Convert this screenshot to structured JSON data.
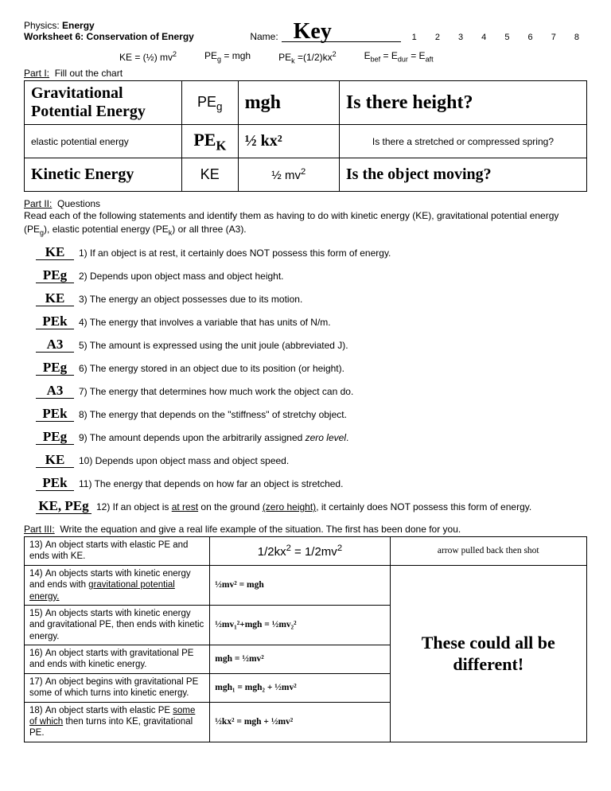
{
  "header": {
    "line1": "Physics: Energy",
    "line2": "Worksheet 6: Conservation of Energy",
    "name_label": "Name:",
    "name_value": "Key",
    "periods": "1   2   3   4   5   6   7   8"
  },
  "formulas": {
    "ke": "KE = (½) mv²",
    "peg": "PEg = mgh",
    "pek": "PEk =(1/2)kx²",
    "econs": "Ebef = Edur = Eaft"
  },
  "part1": {
    "label": "Part I:",
    "instr": "Fill out the chart",
    "rows": [
      {
        "c1": "Gravitational Potential Energy",
        "c1_hand": true,
        "c2": "PEg",
        "c2_hand": false,
        "c3": "mgh",
        "c3_hand": true,
        "c4": "Is there height?",
        "c4_hand": true
      },
      {
        "c1": "elastic potential energy",
        "c1_hand": false,
        "c2": "PEK",
        "c2_hand": true,
        "c3": "½ kx²",
        "c3_hand": true,
        "c4": "Is there a stretched or compressed spring?",
        "c4_hand": false
      },
      {
        "c1": "Kinetic Energy",
        "c1_hand": true,
        "c2": "KE",
        "c2_hand": false,
        "c3": "½ mv²",
        "c3_hand": false,
        "c4": "Is the object moving?",
        "c4_hand": true
      }
    ]
  },
  "part2": {
    "label": "Part II:",
    "label2": "Questions",
    "instr": "Read each of the following statements and identify them as having to do with kinetic energy (KE), gravitational potential energy (PEg), elastic potential energy (PEk) or all three (A3).",
    "items": [
      {
        "ans": "KE",
        "num": "1)",
        "text": "If an object is at rest, it certainly does NOT possess this form of energy."
      },
      {
        "ans": "PEg",
        "num": "2)",
        "text": "Depends upon object mass and object height."
      },
      {
        "ans": "KE",
        "num": "3)",
        "text": "The energy an object possesses due to its motion."
      },
      {
        "ans": "PEk",
        "num": "4)",
        "text": "The energy that involves a variable that has units of N/m."
      },
      {
        "ans": "A3",
        "num": "5)",
        "text": "The amount is expressed using the unit joule (abbreviated J)."
      },
      {
        "ans": "PEg",
        "num": "6)",
        "text": "The energy stored in an object due to its position (or height)."
      },
      {
        "ans": "A3",
        "num": "7)",
        "text": "The energy that determines how much work the object can do."
      },
      {
        "ans": "PEk",
        "num": "8)",
        "text": "The energy that depends on the \"stiffness\" of stretchy object."
      },
      {
        "ans": "PEg",
        "num": "9)",
        "text": "The amount depends upon the arbitrarily assigned zero level."
      },
      {
        "ans": "KE",
        "num": "10)",
        "text": "Depends upon object mass and object speed."
      },
      {
        "ans": "PEk",
        "num": "11)",
        "text": "The energy that depends on how far an object is stretched."
      },
      {
        "ans": "KE, PEg",
        "num": "12)",
        "text": "If an object is at rest on the ground (zero height), it certainly does NOT possess this form of energy.",
        "wide": true
      }
    ]
  },
  "part3": {
    "label": "Part III:",
    "instr": "Write the equation and give a real life example of the situation. The first has been done for you.",
    "rows": [
      {
        "n": "13)",
        "desc": "An object starts with elastic PE and ends with KE.",
        "eq": "1/2kx² = 1/2mv²",
        "ex": "arrow pulled back then shot"
      },
      {
        "n": "14)",
        "desc": "An objects starts with kinetic energy and ends with gravitational potential energy.",
        "eq": "½mv² = mgh",
        "ex_rowspan": 5,
        "ex": "These could all be different!"
      },
      {
        "n": "15)",
        "desc": "An objects starts with kinetic energy and gravitational PE, then ends with kinetic energy.",
        "eq": "½mv₁²+mgh = ½mv₂²"
      },
      {
        "n": "16)",
        "desc": "An object starts with gravitational PE and ends with kinetic energy.",
        "eq": "mgh = ½mv²"
      },
      {
        "n": "17)",
        "desc": "An object begins with gravitational PE some of which turns into kinetic energy.",
        "eq": "mgh₁ = mgh₂ + ½mv²"
      },
      {
        "n": "18)",
        "desc": "An object starts with elastic PE some of which then turns into KE, gravitational PE.",
        "eq": "½kx² = mgh + ½mv²"
      }
    ]
  }
}
